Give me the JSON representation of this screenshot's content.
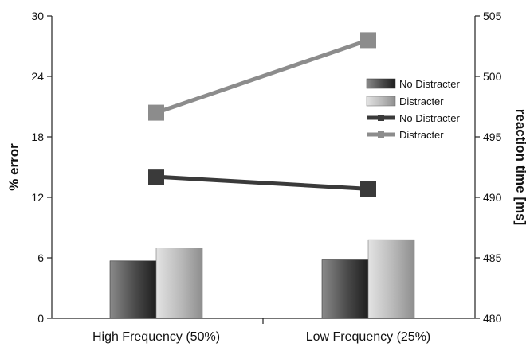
{
  "chart_data": {
    "type": "bar+line",
    "categories": [
      "High Frequency (50%)",
      "Low Frequency (25%)"
    ],
    "left_axis": {
      "label": "% error",
      "ylim": [
        0,
        30
      ],
      "ticks": [
        0,
        6,
        12,
        18,
        24,
        30
      ]
    },
    "right_axis": {
      "label": "reaction time [ms]",
      "ylim": [
        480,
        505
      ],
      "ticks": [
        480,
        485,
        490,
        495,
        500,
        505
      ]
    },
    "bar_series": [
      {
        "name": "No Distracter",
        "axis": "left",
        "values": [
          5.7,
          5.8
        ],
        "color": "#555555"
      },
      {
        "name": "Distracter",
        "axis": "left",
        "values": [
          7.0,
          7.8
        ],
        "color": "#b5b5b5"
      }
    ],
    "line_series": [
      {
        "name": "No Distracter",
        "axis": "right",
        "values": [
          491.7,
          490.7
        ],
        "color": "#3a3a3a"
      },
      {
        "name": "Distracter",
        "axis": "right",
        "values": [
          497.0,
          503.0
        ],
        "color": "#8c8c8c"
      }
    ],
    "legend": {
      "placement": "top-right",
      "entries": [
        "No Distracter",
        "Distracter",
        "No Distracter",
        "Distracter"
      ]
    },
    "grid": false
  }
}
